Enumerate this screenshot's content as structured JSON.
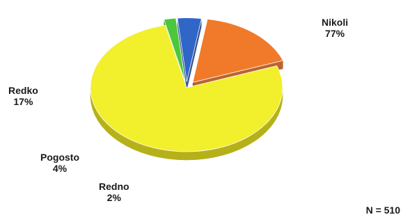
{
  "chart_data": {
    "type": "pie",
    "style": "3d-exploded",
    "slices": [
      {
        "label": "Nikoli",
        "value": 77,
        "display": "77%",
        "color": "#f2ef2c",
        "side_color": "#b6b11a"
      },
      {
        "label": "Redno",
        "value": 2,
        "display": "2%",
        "color": "#4cc63a",
        "side_color": "#2a8a22"
      },
      {
        "label": "Pogosto",
        "value": 4,
        "display": "4%",
        "color": "#2f66c7",
        "side_color": "#1c3f86"
      },
      {
        "label": "Redko",
        "value": 17,
        "display": "17%",
        "color": "#f07a2a",
        "side_color": "#b3541a"
      }
    ],
    "note": "N = 510"
  }
}
